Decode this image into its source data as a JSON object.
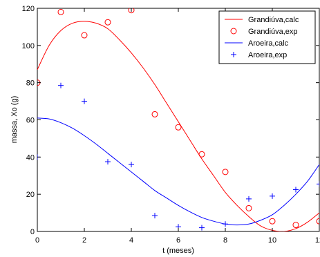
{
  "chart_data": {
    "type": "line",
    "title": "",
    "xlabel": "t (meses)",
    "ylabel": "massa, Xo (g)",
    "xlim": [
      0,
      12
    ],
    "ylim": [
      0,
      120
    ],
    "x_ticks": [
      "0",
      "2",
      "4",
      "6",
      "8",
      "10",
      "12"
    ],
    "y_ticks": [
      "0",
      "20",
      "40",
      "60",
      "80",
      "100",
      "120"
    ],
    "grid": false,
    "legend_position": "top-right",
    "series": [
      {
        "name": "Grandiúva,calc",
        "kind": "line",
        "color": "#ff0000",
        "x": [
          0,
          0.5,
          1,
          1.5,
          2,
          2.5,
          3,
          3.5,
          4,
          4.5,
          5,
          5.5,
          6,
          6.5,
          7,
          7.5,
          8,
          8.5,
          9,
          9.5,
          10,
          10.5,
          11,
          11.5,
          12
        ],
        "y": [
          87,
          100,
          108,
          112,
          113,
          112,
          109,
          103,
          96,
          88,
          79,
          69,
          59,
          49,
          39,
          30,
          21,
          14,
          8,
          3,
          0.6,
          0,
          1.5,
          5,
          10
        ]
      },
      {
        "name": "Grandiúva,exp",
        "kind": "marker",
        "marker": "circle",
        "color": "#ff0000",
        "x": [
          0,
          1,
          2,
          3,
          4,
          5,
          6,
          7,
          8,
          9,
          10,
          11,
          12
        ],
        "y": [
          80,
          118,
          105.5,
          112.5,
          119,
          63,
          56,
          41.5,
          32,
          12.5,
          5.5,
          3.5,
          5.5
        ]
      },
      {
        "name": "Aroeira,calc",
        "kind": "line",
        "color": "#0000ff",
        "x": [
          0,
          0.5,
          1,
          1.5,
          2,
          2.5,
          3,
          3.5,
          4,
          4.5,
          5,
          5.5,
          6,
          6.5,
          7,
          7.5,
          8,
          8.5,
          9,
          9.5,
          10,
          10.5,
          11,
          11.5,
          12
        ],
        "y": [
          61,
          60.5,
          58.5,
          55.5,
          51.5,
          47,
          42,
          37,
          32,
          27,
          22,
          18,
          14,
          10.5,
          7.5,
          5.5,
          4,
          3.5,
          4,
          6,
          9,
          14,
          20,
          27,
          36
        ]
      },
      {
        "name": "Aroeira,exp",
        "kind": "marker",
        "marker": "plus",
        "color": "#0000ff",
        "x": [
          0,
          1,
          2,
          3,
          4,
          5,
          6,
          7,
          8,
          9,
          10,
          11,
          12
        ],
        "y": [
          40,
          78.5,
          70,
          37.5,
          36,
          8.5,
          2.5,
          2,
          4,
          17.5,
          19,
          22.5,
          25.5
        ]
      }
    ]
  }
}
